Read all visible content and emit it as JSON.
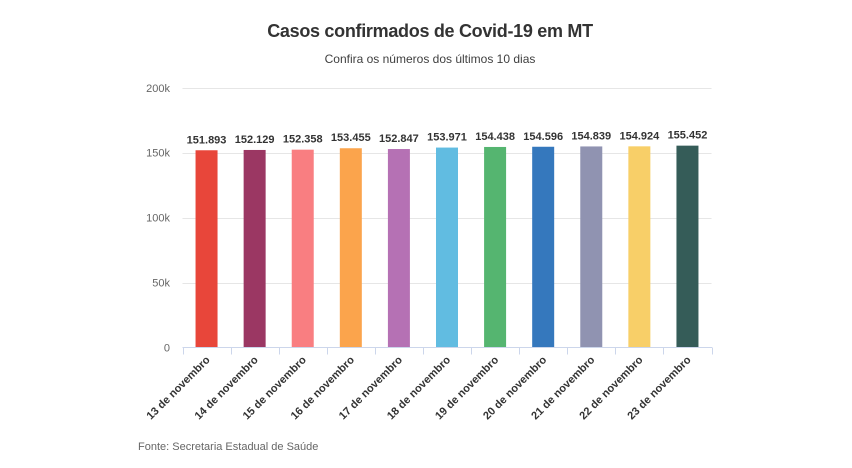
{
  "chart": {
    "title": "Casos confirmados de Covid-19 em MT",
    "subtitle": "Confira os números dos últimos 10 dias",
    "source": "Fonte: Secretaria Estadual de Saúde"
  },
  "chart_data": {
    "type": "bar",
    "title": "Casos confirmados de Covid-19 em MT",
    "subtitle": "Confira os números dos últimos 10 dias",
    "source": "Fonte: Secretaria Estadual de Saúde",
    "categories": [
      "13 de novembro",
      "14 de novembro",
      "15 de novembro",
      "16 de novembro",
      "17 de novembro",
      "18 de novembro",
      "19 de novembro",
      "20 de novembro",
      "21 de novembro",
      "22 de novembro",
      "23 de novembro"
    ],
    "values": [
      151893,
      152129,
      152358,
      153455,
      152847,
      153971,
      154438,
      154596,
      154839,
      154924,
      155452
    ],
    "value_labels": [
      "151.893",
      "152.129",
      "152.358",
      "153.455",
      "152.847",
      "153.971",
      "154.438",
      "154.596",
      "154.839",
      "154.924",
      "155.452"
    ],
    "bar_colors": [
      "#e8463a",
      "#9b3763",
      "#f97e81",
      "#fba44c",
      "#b571b4",
      "#61bce1",
      "#55b570",
      "#3578bd",
      "#9093b1",
      "#f8cf68",
      "#355c58"
    ],
    "xlabel": "",
    "ylabel": "",
    "ylim": [
      0,
      200000
    ],
    "yticks": [
      0,
      50000,
      100000,
      150000,
      200000
    ],
    "ytick_labels": [
      "0",
      "50k",
      "100k",
      "150k",
      "200k"
    ],
    "grid": true,
    "legend": false,
    "axis_line_color": "#ccd6eb",
    "grid_line_color": "#e6e6e6",
    "value_label_color": "#333333",
    "xtick_label_color": "#333333",
    "ytick_label_color": "#666666"
  }
}
